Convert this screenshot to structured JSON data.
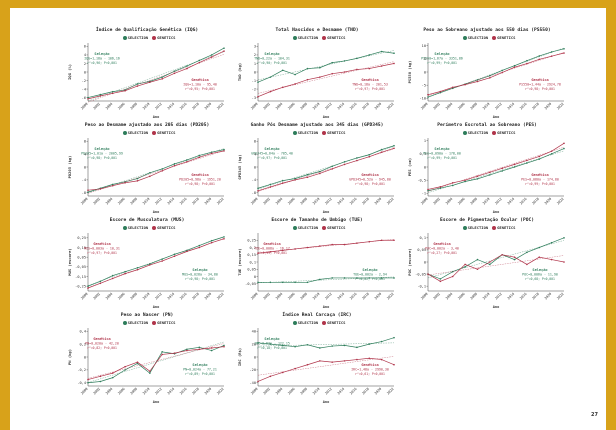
{
  "legend": {
    "a": "SELECTION",
    "b": "GENETICS"
  },
  "colors": {
    "a": "#2e7d5b",
    "b": "#b0344a"
  },
  "page_number": "27",
  "xlabel": "Ano",
  "chart_data": [
    {
      "type": "line",
      "title": "Índice de Qualificação Genética (IQG)",
      "ylabel": "IQG (%)",
      "ylim": [
        -6.8,
        6.8
      ],
      "yticks": [
        -6,
        -4,
        -2,
        0,
        2,
        4,
        6
      ],
      "categories": [
        "2000",
        "2002",
        "2004",
        "2006",
        "2008",
        "2010",
        "2012",
        "2014",
        "2016",
        "2018",
        "2020",
        "2022"
      ],
      "series": [
        {
          "values": [
            -6.0,
            -5.3,
            -4.6,
            -4.2,
            -2.8,
            -2.2,
            -1.2,
            0.2,
            1.4,
            2.7,
            4.0,
            5.6
          ]
        },
        {
          "values": [
            -6.3,
            -5.6,
            -5.0,
            -4.4,
            -3.3,
            -2.4,
            -1.6,
            -0.3,
            0.8,
            2.2,
            3.5,
            4.9
          ]
        }
      ],
      "notes": [
        {
          "text": "Seleção",
          "sub": "IQG=1,18a - 106,16",
          "sub2": "r²=0,96; P<0,001",
          "pos": "upper-left",
          "c": "a"
        },
        {
          "text": "Genética",
          "sub": "IQG=1,10a - 95,40",
          "sub2": "r²=0,95; P<0,001",
          "pos": "lower-right",
          "c": "b"
        }
      ]
    },
    {
      "type": "line",
      "title": "Total Nascidos e Desmame (TND)",
      "ylabel": "TND (kg)",
      "ylim": [
        -3.4,
        3.4
      ],
      "yticks": [
        -3,
        -2,
        -1,
        0,
        1,
        2,
        3
      ],
      "categories": [
        "2000",
        "2002",
        "2004",
        "2006",
        "2008",
        "2010",
        "2012",
        "2014",
        "2016",
        "2018",
        "2020",
        "2022"
      ],
      "series": [
        {
          "values": [
            -1.2,
            -0.6,
            0.2,
            -0.3,
            0.4,
            0.5,
            1.1,
            1.3,
            1.6,
            2.0,
            2.4,
            2.2
          ]
        },
        {
          "values": [
            -2.9,
            -2.3,
            -1.8,
            -1.4,
            -0.9,
            -0.6,
            -0.2,
            0.0,
            0.3,
            0.4,
            0.7,
            1.0
          ]
        }
      ],
      "notes": [
        {
          "text": "Seleção",
          "sub": "TND=0,22a - 104,31",
          "sub2": "r²=0,90; P<0,001",
          "pos": "upper-left",
          "c": "a"
        },
        {
          "text": "Genética",
          "sub": "TND=0,18a - 201,53",
          "sub2": "r²=0,97; P<0,001",
          "pos": "lower-right",
          "c": "b"
        }
      ]
    },
    {
      "type": "line",
      "title": "Peso ao Sobreano ajustado aos 550 dias (PS550)",
      "ylabel": "PS550 (kg)",
      "ylim": [
        -11,
        11
      ],
      "yticks": [
        -10,
        -5,
        0,
        5,
        10
      ],
      "categories": [
        "2000",
        "2002",
        "2004",
        "2006",
        "2008",
        "2010",
        "2012",
        "2014",
        "2016",
        "2018",
        "2020",
        "2022"
      ],
      "series": [
        {
          "values": [
            -9.5,
            -7.8,
            -6.2,
            -4.6,
            -3.0,
            -1.4,
            0.6,
            2.4,
            4.3,
            6.1,
            7.6,
            8.8
          ]
        },
        {
          "values": [
            -8.6,
            -7.4,
            -5.8,
            -4.8,
            -3.6,
            -2.2,
            -0.2,
            1.8,
            3.2,
            4.8,
            6.0,
            7.2
          ]
        }
      ],
      "notes": [
        {
          "text": "Seleção",
          "sub": "PS550=1,67a - 3351,86",
          "sub2": "r²=0,99; P<0,001",
          "pos": "upper-left",
          "c": "a"
        },
        {
          "text": "Genética",
          "sub": "PS550=1,44a - 2924,78",
          "sub2": "r²=0,98; P<0,001",
          "pos": "lower-right",
          "c": "b"
        }
      ]
    },
    {
      "type": "line",
      "title": "Peso ao Desmame ajustado aos 205 dias (PD205)",
      "ylabel": "PD205 (kg)",
      "ylim": [
        -9,
        9
      ],
      "yticks": [
        -8,
        -4,
        0,
        4,
        8
      ],
      "categories": [
        "2000",
        "2002",
        "2004",
        "2006",
        "2008",
        "2010",
        "2012",
        "2014",
        "2016",
        "2018",
        "2020",
        "2022"
      ],
      "series": [
        {
          "values": [
            -7.8,
            -6.6,
            -5.4,
            -4.6,
            -3.6,
            -1.8,
            -0.6,
            1.0,
            2.2,
            3.6,
            4.6,
            5.4
          ]
        },
        {
          "values": [
            -7.2,
            -6.8,
            -5.8,
            -4.9,
            -4.3,
            -2.9,
            -1.2,
            0.4,
            1.6,
            3.0,
            4.2,
            5.0
          ]
        }
      ],
      "notes": [
        {
          "text": "Seleção",
          "sub": "PD205=1,01a - 2005,99",
          "sub2": "r²=0,98; P<0,001",
          "pos": "upper-left",
          "c": "a"
        },
        {
          "text": "Genética",
          "sub": "PD205=0,98a - 1951,20",
          "sub2": "r²=0,98; P<0,001",
          "pos": "lower-right",
          "c": "b"
        }
      ]
    },
    {
      "type": "line",
      "title": "Ganho Pós Desmame ajustado aos 345 dias (GPD345)",
      "ylabel": "GPD345 (kg)",
      "ylim": [
        -9,
        9
      ],
      "yticks": [
        -8,
        -4,
        0,
        4,
        8
      ],
      "categories": [
        "2000",
        "2002",
        "2004",
        "2006",
        "2008",
        "2010",
        "2012",
        "2014",
        "2016",
        "2018",
        "2020",
        "2022"
      ],
      "series": [
        {
          "values": [
            -6.6,
            -5.4,
            -4.2,
            -3.6,
            -2.4,
            -1.4,
            0.2,
            1.6,
            2.8,
            3.8,
            5.4,
            6.6
          ]
        },
        {
          "values": [
            -7.4,
            -6.2,
            -5.0,
            -4.0,
            -3.2,
            -2.0,
            -0.6,
            0.8,
            2.0,
            3.2,
            4.6,
            5.8
          ]
        }
      ],
      "notes": [
        {
          "text": "Seleção",
          "sub": "GPD345=0,64a - 785,40",
          "sub2": "r²=0,97; P<0,001",
          "pos": "upper-left",
          "c": "a"
        },
        {
          "text": "Genética",
          "sub": "GPD345=0,52a - 945,80",
          "sub2": "r²=0,98; P<0,001",
          "pos": "lower-right",
          "c": "b"
        }
      ]
    },
    {
      "type": "line",
      "title": "Perímetro Escrotal ao Sobreano (PES)",
      "ylabel": "PES (cm)",
      "ylim": [
        -1.1,
        1.1
      ],
      "yticks": [
        -1.0,
        -0.5,
        0.0,
        0.5,
        1.0
      ],
      "categories": [
        "2000",
        "2002",
        "2004",
        "2006",
        "2008",
        "2010",
        "2012",
        "2014",
        "2016",
        "2018",
        "2020",
        "2022"
      ],
      "series": [
        {
          "values": [
            -0.9,
            -0.8,
            -0.7,
            -0.55,
            -0.45,
            -0.3,
            -0.15,
            0.0,
            0.15,
            0.3,
            0.5,
            0.7
          ]
        },
        {
          "values": [
            -0.85,
            -0.75,
            -0.6,
            -0.5,
            -0.35,
            -0.2,
            -0.05,
            0.1,
            0.25,
            0.4,
            0.6,
            0.9
          ]
        }
      ],
      "notes": [
        {
          "text": "Seleção",
          "sub": "PES=0,090a - 178,00",
          "sub2": "r²=0,99; P<0,001",
          "pos": "upper-left",
          "c": "a"
        },
        {
          "text": "Genética",
          "sub": "PES=0,080a - 174,80",
          "sub2": "r²=0,99; P<0,001",
          "pos": "lower-right",
          "c": "b"
        }
      ]
    },
    {
      "type": "line",
      "title": "Escore de Musculatura (MUS)",
      "ylabel": "MUS (escore)",
      "ylim": [
        -0.3,
        0.3
      ],
      "yticks": [
        -0.25,
        -0.15,
        -0.05,
        0.05,
        0.15,
        0.25
      ],
      "categories": [
        "2000",
        "2002",
        "2004",
        "2006",
        "2008",
        "2010",
        "2012",
        "2014",
        "2016",
        "2018",
        "2020",
        "2022"
      ],
      "series": [
        {
          "values": [
            -0.25,
            -0.2,
            -0.14,
            -0.1,
            -0.06,
            -0.02,
            0.03,
            0.08,
            0.12,
            0.17,
            0.22,
            0.26
          ]
        },
        {
          "values": [
            -0.27,
            -0.22,
            -0.17,
            -0.12,
            -0.08,
            -0.03,
            0.01,
            0.06,
            0.11,
            0.15,
            0.2,
            0.24
          ]
        }
      ],
      "notes": [
        {
          "text": "Genética",
          "sub": "MUS=0,003a - 10,31",
          "sub2": "r²=0,97; P<0,001",
          "pos": "upper-left",
          "c": "b"
        },
        {
          "text": "Seleção",
          "sub": "MUS=0,028a - 34,80",
          "sub2": "r²=0,98; P<0,001",
          "pos": "lower-right",
          "c": "a"
        }
      ]
    },
    {
      "type": "line",
      "title": "Escore de Tamanho de Umbigo (TUE)",
      "ylabel": "TUE (escore)",
      "ylim": [
        -0.1,
        0.3
      ],
      "yticks": [
        -0.05,
        0.0,
        0.05,
        0.1,
        0.15,
        0.2,
        0.25
      ],
      "categories": [
        "2000",
        "2002",
        "2004",
        "2006",
        "2008",
        "2010",
        "2012",
        "2014",
        "2016",
        "2018",
        "2020",
        "2022"
      ],
      "series": [
        {
          "values": [
            -0.04,
            -0.04,
            -0.04,
            -0.04,
            -0.04,
            -0.02,
            -0.01,
            -0.01,
            -0.01,
            -0.01,
            -0.01,
            -0.01
          ]
        },
        {
          "values": [
            0.16,
            0.17,
            0.18,
            0.19,
            0.2,
            0.21,
            0.22,
            0.22,
            0.23,
            0.24,
            0.25,
            0.25
          ]
        }
      ],
      "notes": [
        {
          "text": "Genética",
          "sub": "TUE=0,008a - 16,17",
          "sub2": "r²=0,99; P<0,001",
          "pos": "upper-left",
          "c": "b"
        },
        {
          "text": "Seleção",
          "sub": "TUE=0,002a - 2,94",
          "sub2": "r²=0,82; P<0,001",
          "pos": "lower-right",
          "c": "a"
        }
      ]
    },
    {
      "type": "line",
      "title": "Escore de Pigmentação Ocular (POC)",
      "ylabel": "POC (escore)",
      "ylim": [
        -0.12,
        0.12
      ],
      "yticks": [
        -0.1,
        -0.05,
        0.0,
        0.05,
        0.1
      ],
      "categories": [
        "2000",
        "2002",
        "2004",
        "2006",
        "2008",
        "2010",
        "2012",
        "2014",
        "2016",
        "2018",
        "2020",
        "2022"
      ],
      "series": [
        {
          "values": [
            -0.05,
            -0.07,
            -0.04,
            -0.02,
            0.01,
            -0.01,
            0.03,
            0.01,
            0.04,
            0.06,
            0.08,
            0.1
          ]
        },
        {
          "values": [
            -0.05,
            -0.08,
            -0.06,
            -0.01,
            -0.03,
            0.0,
            0.03,
            0.02,
            -0.01,
            0.02,
            0.01,
            0.0
          ]
        }
      ],
      "notes": [
        {
          "text": "Genética",
          "sub": "POC=0,002a - 3,40",
          "sub2": "r²=0,27; P<0,001",
          "pos": "upper-left",
          "c": "b"
        },
        {
          "text": "Seleção",
          "sub": "POC=0,006a - 11,90",
          "sub2": "r²=0,68; P<0,001",
          "pos": "lower-right",
          "c": "a"
        }
      ]
    },
    {
      "type": "line",
      "title": "Peso ao Nascer (PN)",
      "ylabel": "PN (kg)",
      "ylim": [
        -0.45,
        0.45
      ],
      "yticks": [
        -0.4,
        -0.2,
        0.0,
        0.2,
        0.4
      ],
      "categories": [
        "2000",
        "2002",
        "2004",
        "2006",
        "2008",
        "2010",
        "2012",
        "2014",
        "2016",
        "2018",
        "2020",
        "2022"
      ],
      "series": [
        {
          "values": [
            -0.4,
            -0.38,
            -0.32,
            -0.2,
            -0.1,
            -0.25,
            0.08,
            0.05,
            0.12,
            0.15,
            0.1,
            0.18
          ]
        },
        {
          "values": [
            -0.35,
            -0.3,
            -0.25,
            -0.15,
            -0.08,
            -0.22,
            0.04,
            0.06,
            0.1,
            0.12,
            0.14,
            0.16
          ]
        }
      ],
      "notes": [
        {
          "text": "Genética",
          "sub": "PN=0,020a - 42,20",
          "sub2": "r²=0,82; P<0,001",
          "pos": "upper-left",
          "c": "b"
        },
        {
          "text": "Seleção",
          "sub": "PN=0,024a - 77,21",
          "sub2": "r²=0,89; P<0,001",
          "pos": "lower-right",
          "c": "a"
        }
      ]
    },
    {
      "type": "line",
      "title": "Índice Real Carcaça (IRC)",
      "ylabel": "IRC (R$)",
      "ylim": [
        -45,
        45
      ],
      "yticks": [
        -40,
        -20,
        0,
        20,
        40
      ],
      "categories": [
        "2000",
        "2002",
        "2004",
        "2006",
        "2008",
        "2010",
        "2012",
        "2014",
        "2016",
        "2018",
        "2020",
        "2022"
      ],
      "series": [
        {
          "values": [
            22,
            20,
            18,
            16,
            19,
            14,
            17,
            18,
            15,
            20,
            24,
            30
          ]
        },
        {
          "values": [
            -38,
            -30,
            -24,
            -18,
            -12,
            -6,
            -8,
            -6,
            -4,
            -2,
            -4,
            -12
          ]
        }
      ],
      "notes": [
        {
          "text": "Seleção",
          "sub": "IRC=0,63a - 122,15",
          "sub2": "r²=0,18; P<0,001",
          "pos": "upper-left",
          "c": "a"
        },
        {
          "text": "Genética",
          "sub": "IRC=1,48a - 2990,30",
          "sub2": "r²=0,61; P<0,001",
          "pos": "lower-right",
          "c": "b"
        }
      ]
    }
  ]
}
